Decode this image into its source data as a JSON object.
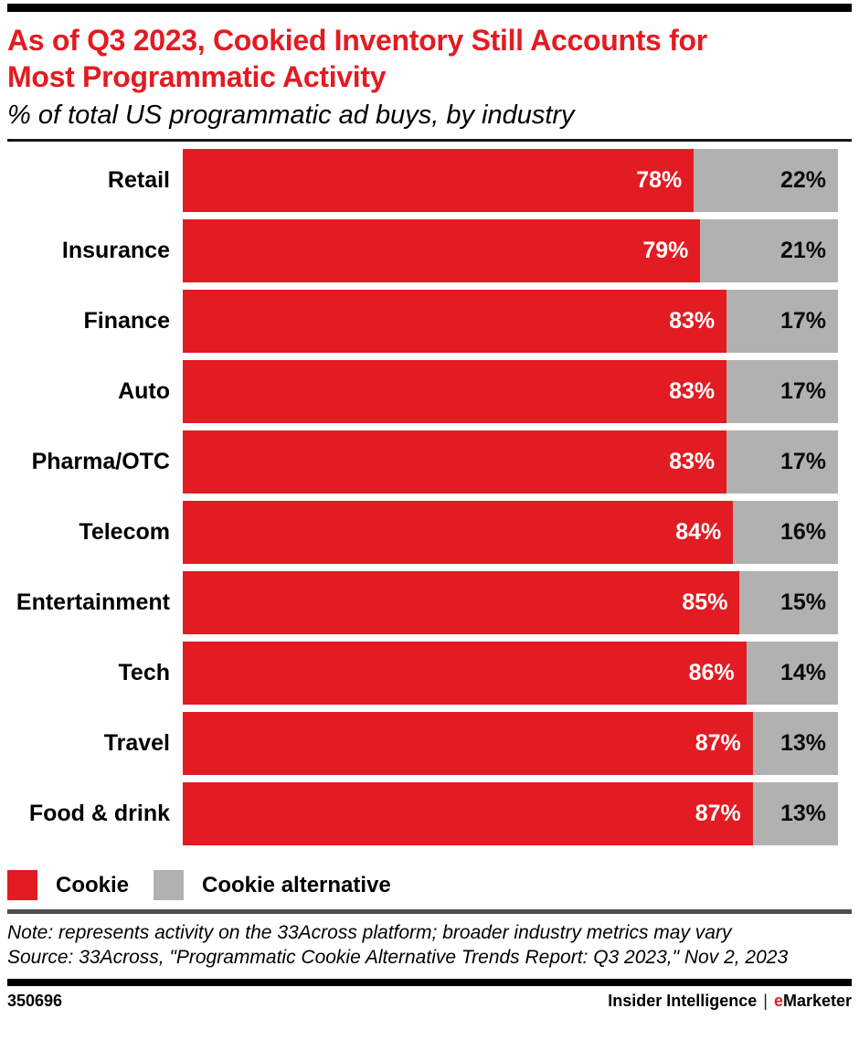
{
  "header": {
    "title": "As of Q3 2023, Cookied Inventory Still Accounts for Most Programmatic Activity",
    "title_line1": "As of Q3 2023, Cookied Inventory Still Accounts for",
    "title_line2": "Most Programmatic Activity",
    "subtitle": "% of total US programmatic ad buys, by industry"
  },
  "chart_data": {
    "type": "bar",
    "orientation": "horizontal",
    "stacked": true,
    "unit": "%",
    "title": "As of Q3 2023, Cookied Inventory Still Accounts for Most Programmatic Activity",
    "subtitle": "% of total US programmatic ad buys, by industry",
    "categories": [
      "Retail",
      "Insurance",
      "Finance",
      "Auto",
      "Pharma/OTC",
      "Telecom",
      "Entertainment",
      "Tech",
      "Travel",
      "Food & drink"
    ],
    "series": [
      {
        "name": "Cookie",
        "color": "#E31B22",
        "values": [
          78,
          79,
          83,
          83,
          83,
          84,
          85,
          86,
          87,
          87
        ]
      },
      {
        "name": "Cookie alternative",
        "color": "#B1B1B1",
        "values": [
          22,
          21,
          17,
          17,
          17,
          16,
          15,
          14,
          13,
          13
        ]
      }
    ],
    "xlim": [
      0,
      100
    ],
    "value_labels": "inside-end",
    "grid": false,
    "legend_position": "bottom-left"
  },
  "legend": {
    "items": [
      {
        "label": "Cookie",
        "color": "#E31B22"
      },
      {
        "label": "Cookie alternative",
        "color": "#B1B1B1"
      }
    ]
  },
  "notes": {
    "note": "Note: represents activity on the 33Across platform; broader industry metrics may vary",
    "source": "Source: 33Across, \"Programmatic Cookie Alternative Trends Report: Q3 2023,\" Nov 2, 2023"
  },
  "footer": {
    "chart_id": "350696",
    "brand_left": "Insider Intelligence",
    "separator": "|",
    "brand_right_first_letter": "e",
    "brand_right_rest": "Marketer"
  },
  "colors": {
    "accent_red": "#E31B22",
    "bar_gray": "#B1B1B1",
    "divider_dark": "#4D4E50",
    "bar_black": "#000000"
  }
}
